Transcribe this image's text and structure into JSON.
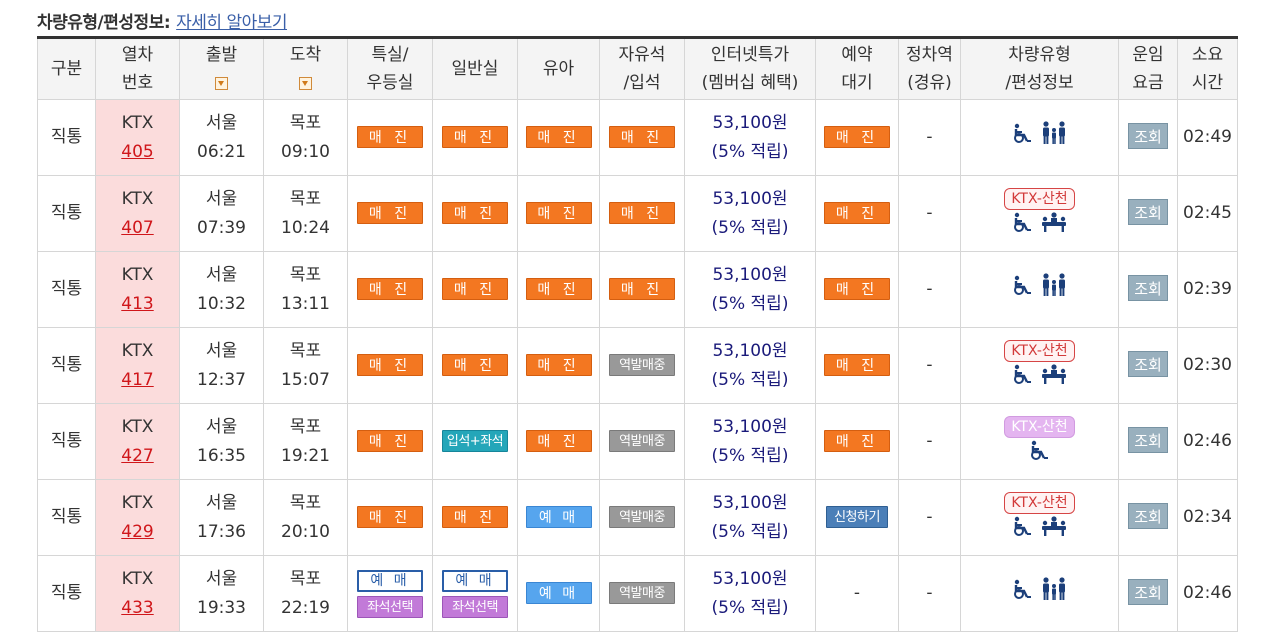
{
  "caption": {
    "title": "차량유형/편성정보:",
    "link": "자세히 알아보기"
  },
  "headers": {
    "category": "구분",
    "train_no": [
      "열차",
      "번호"
    ],
    "depart": "출발",
    "arrive": "도착",
    "first_class": [
      "특실/",
      "우등실"
    ],
    "standard": "일반실",
    "infant": "유아",
    "free_seat": [
      "자유석",
      "/입석"
    ],
    "internet_fare": [
      "인터넷특가",
      "(멤버십 혜택)"
    ],
    "waitlist": [
      "예약",
      "대기"
    ],
    "stops": [
      "정차역",
      "(경유)"
    ],
    "car_type": [
      "차량유형",
      "/편성정보"
    ],
    "fare": [
      "운임",
      "요금"
    ],
    "duration": [
      "소요",
      "시간"
    ]
  },
  "rows": [
    {
      "category": "직통",
      "train_type": "KTX",
      "train_no": "405",
      "dep_station": "서울",
      "dep_time": "06:21",
      "arr_station": "목포",
      "arr_time": "09:10",
      "first": {
        "label": "매 진",
        "style": "orange"
      },
      "standard": {
        "label": "매 진",
        "style": "orange"
      },
      "infant": {
        "label": "매 진",
        "style": "orange"
      },
      "free": {
        "label": "매 진",
        "style": "orange"
      },
      "price": "53,100원",
      "points": "(5% 적립)",
      "wait": {
        "label": "매 진",
        "style": "orange"
      },
      "stops": "-",
      "badge": "",
      "car_icons": [
        "wheelchair-icon",
        "family-icon"
      ],
      "fare_btn": "조회",
      "duration": "02:49"
    },
    {
      "category": "직통",
      "train_type": "KTX",
      "train_no": "407",
      "dep_station": "서울",
      "dep_time": "07:39",
      "arr_station": "목포",
      "arr_time": "10:24",
      "first": {
        "label": "매 진",
        "style": "orange"
      },
      "standard": {
        "label": "매 진",
        "style": "orange"
      },
      "infant": {
        "label": "매 진",
        "style": "orange"
      },
      "free": {
        "label": "매 진",
        "style": "orange"
      },
      "price": "53,100원",
      "points": "(5% 적립)",
      "wait": {
        "label": "매 진",
        "style": "orange"
      },
      "stops": "-",
      "badge": "KTX-산천",
      "badge_style": "red",
      "car_icons": [
        "wheelchair-icon",
        "meeting-table-icon"
      ],
      "fare_btn": "조회",
      "duration": "02:45"
    },
    {
      "category": "직통",
      "train_type": "KTX",
      "train_no": "413",
      "dep_station": "서울",
      "dep_time": "10:32",
      "arr_station": "목포",
      "arr_time": "13:11",
      "first": {
        "label": "매 진",
        "style": "orange"
      },
      "standard": {
        "label": "매 진",
        "style": "orange"
      },
      "infant": {
        "label": "매 진",
        "style": "orange"
      },
      "free": {
        "label": "매 진",
        "style": "orange"
      },
      "price": "53,100원",
      "points": "(5% 적립)",
      "wait": {
        "label": "매 진",
        "style": "orange"
      },
      "stops": "-",
      "badge": "",
      "car_icons": [
        "wheelchair-icon",
        "family-icon"
      ],
      "fare_btn": "조회",
      "duration": "02:39"
    },
    {
      "category": "직통",
      "train_type": "KTX",
      "train_no": "417",
      "dep_station": "서울",
      "dep_time": "12:37",
      "arr_station": "목포",
      "arr_time": "15:07",
      "first": {
        "label": "매 진",
        "style": "orange"
      },
      "standard": {
        "label": "매 진",
        "style": "orange"
      },
      "infant": {
        "label": "매 진",
        "style": "orange"
      },
      "free": {
        "label": "역발매중",
        "style": "gray"
      },
      "price": "53,100원",
      "points": "(5% 적립)",
      "wait": {
        "label": "매 진",
        "style": "orange"
      },
      "stops": "-",
      "badge": "KTX-산천",
      "badge_style": "red",
      "car_icons": [
        "wheelchair-icon",
        "meeting-table-icon"
      ],
      "fare_btn": "조회",
      "duration": "02:30"
    },
    {
      "category": "직통",
      "train_type": "KTX",
      "train_no": "427",
      "dep_station": "서울",
      "dep_time": "16:35",
      "arr_station": "목포",
      "arr_time": "19:21",
      "first": {
        "label": "매 진",
        "style": "orange"
      },
      "standard": {
        "label": "입석+좌석",
        "style": "teal"
      },
      "infant": {
        "label": "매 진",
        "style": "orange"
      },
      "free": {
        "label": "역발매중",
        "style": "gray"
      },
      "price": "53,100원",
      "points": "(5% 적립)",
      "wait": {
        "label": "매 진",
        "style": "orange"
      },
      "stops": "-",
      "badge": "KTX-산천",
      "badge_style": "pink",
      "car_icons": [
        "wheelchair-icon"
      ],
      "fare_btn": "조회",
      "duration": "02:46"
    },
    {
      "category": "직통",
      "train_type": "KTX",
      "train_no": "429",
      "dep_station": "서울",
      "dep_time": "17:36",
      "arr_station": "목포",
      "arr_time": "20:10",
      "first": {
        "label": "매 진",
        "style": "orange"
      },
      "standard": {
        "label": "매 진",
        "style": "orange"
      },
      "infant": {
        "label": "예 매",
        "style": "blue"
      },
      "free": {
        "label": "역발매중",
        "style": "gray"
      },
      "price": "53,100원",
      "points": "(5% 적립)",
      "wait": {
        "label": "신청하기",
        "style": "apply"
      },
      "stops": "-",
      "badge": "KTX-산천",
      "badge_style": "red",
      "car_icons": [
        "wheelchair-icon",
        "meeting-table-icon"
      ],
      "fare_btn": "조회",
      "duration": "02:34"
    },
    {
      "category": "직통",
      "train_type": "KTX",
      "train_no": "433",
      "dep_station": "서울",
      "dep_time": "19:33",
      "arr_station": "목포",
      "arr_time": "22:19",
      "first": {
        "label": "예 매",
        "style": "outline",
        "extra": "좌석선택"
      },
      "standard": {
        "label": "예 매",
        "style": "outline",
        "extra": "좌석선택"
      },
      "infant": {
        "label": "예 매",
        "style": "blue"
      },
      "free": {
        "label": "역발매중",
        "style": "gray"
      },
      "price": "53,100원",
      "points": "(5% 적립)",
      "wait": {
        "label": "-",
        "style": "text"
      },
      "stops": "-",
      "badge": "",
      "car_icons": [
        "wheelchair-icon",
        "family-icon"
      ],
      "fare_btn": "조회",
      "duration": "02:46"
    }
  ],
  "colors": {
    "sold_out": "#f37721",
    "station_sale": "#999999",
    "reserve": "#56a5ee",
    "train_no_bg": "#fbdcdc",
    "train_no_text": "#d0161a",
    "price": "#1a1a7a"
  }
}
